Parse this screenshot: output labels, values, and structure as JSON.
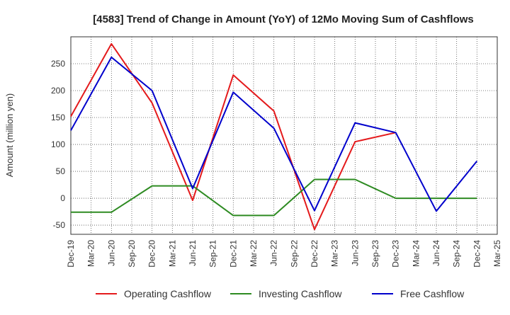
{
  "chart_data": {
    "type": "line",
    "title": "[4583]  Trend of Change in Amount (YoY) of 12Mo Moving Sum of Cashflows",
    "xlabel": "",
    "ylabel": "Amount (million yen)",
    "ylim": [
      -67,
      300
    ],
    "yticks": [
      -50,
      0,
      50,
      100,
      150,
      200,
      250
    ],
    "categories": [
      "Dec-19",
      "Mar-20",
      "Jun-20",
      "Sep-20",
      "Dec-20",
      "Mar-21",
      "Jun-21",
      "Sep-21",
      "Dec-21",
      "Mar-22",
      "Jun-22",
      "Sep-22",
      "Dec-22",
      "Mar-23",
      "Jun-23",
      "Sep-23",
      "Dec-23",
      "Mar-24",
      "Jun-24",
      "Sep-24",
      "Dec-24",
      "Mar-25"
    ],
    "grid": true,
    "legend_position": "bottom",
    "series": [
      {
        "name": "Operating Cashflow",
        "color": "#e41a1c",
        "points": [
          [
            0,
            152
          ],
          [
            2,
            287
          ],
          [
            4,
            177
          ],
          [
            6,
            -4
          ],
          [
            8,
            229
          ],
          [
            10,
            162
          ],
          [
            12,
            -58
          ],
          [
            14,
            105
          ],
          [
            16,
            122
          ]
        ]
      },
      {
        "name": "Investing Cashflow",
        "color": "#2e8b22",
        "points": [
          [
            0,
            -26
          ],
          [
            2,
            -26
          ],
          [
            4,
            23
          ],
          [
            6,
            23
          ],
          [
            8,
            -32
          ],
          [
            10,
            -32
          ],
          [
            12,
            35
          ],
          [
            14,
            35
          ],
          [
            16,
            0
          ],
          [
            18,
            0
          ],
          [
            20,
            0
          ]
        ]
      },
      {
        "name": "Free Cashflow",
        "color": "#0000cc",
        "points": [
          [
            0,
            126
          ],
          [
            2,
            262
          ],
          [
            4,
            200
          ],
          [
            6,
            18
          ],
          [
            8,
            197
          ],
          [
            10,
            130
          ],
          [
            12,
            -23
          ],
          [
            14,
            140
          ],
          [
            16,
            122
          ],
          [
            18,
            -24
          ],
          [
            20,
            69
          ]
        ]
      }
    ]
  }
}
